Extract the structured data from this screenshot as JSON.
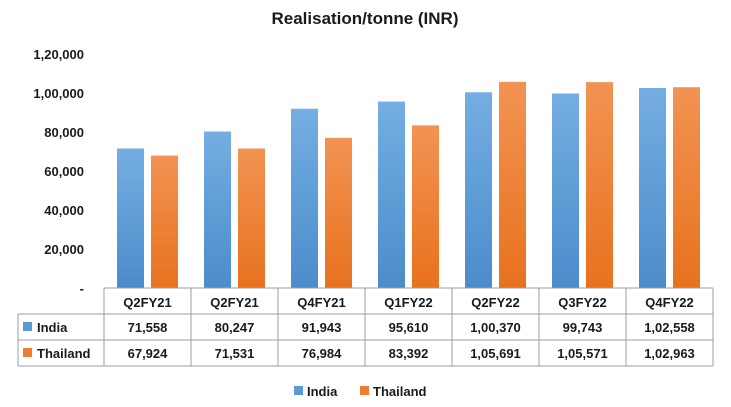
{
  "chart_data": {
    "type": "bar",
    "title": "Realisation/tonne (INR)",
    "categories": [
      "Q2FY21",
      "Q2FY21",
      "Q4FY21",
      "Q1FY22",
      "Q2FY22",
      "Q3FY22",
      "Q4FY22"
    ],
    "series": [
      {
        "name": "India",
        "color": "#5b9bd5",
        "values": [
          71558,
          80247,
          91943,
          95610,
          100370,
          99743,
          102558
        ],
        "labels": [
          "71,558",
          "80,247",
          "91,943",
          "95,610",
          "1,00,370",
          "99,743",
          "1,02,558"
        ]
      },
      {
        "name": "Thailand",
        "color": "#ed7d31",
        "values": [
          67924,
          71531,
          76984,
          83392,
          105691,
          105571,
          102963
        ],
        "labels": [
          "67,924",
          "71,531",
          "76,984",
          "83,392",
          "1,05,691",
          "1,05,571",
          "1,02,963"
        ]
      }
    ],
    "yticks": [
      0,
      20000,
      40000,
      60000,
      80000,
      100000,
      120000
    ],
    "ytick_labels": [
      "-",
      "20,000",
      "40,000",
      "60,000",
      "80,000",
      "1,00,000",
      "1,20,000"
    ],
    "ylim": [
      0,
      120000
    ],
    "grid": false,
    "data_table": true,
    "legend_position": "bottom"
  }
}
